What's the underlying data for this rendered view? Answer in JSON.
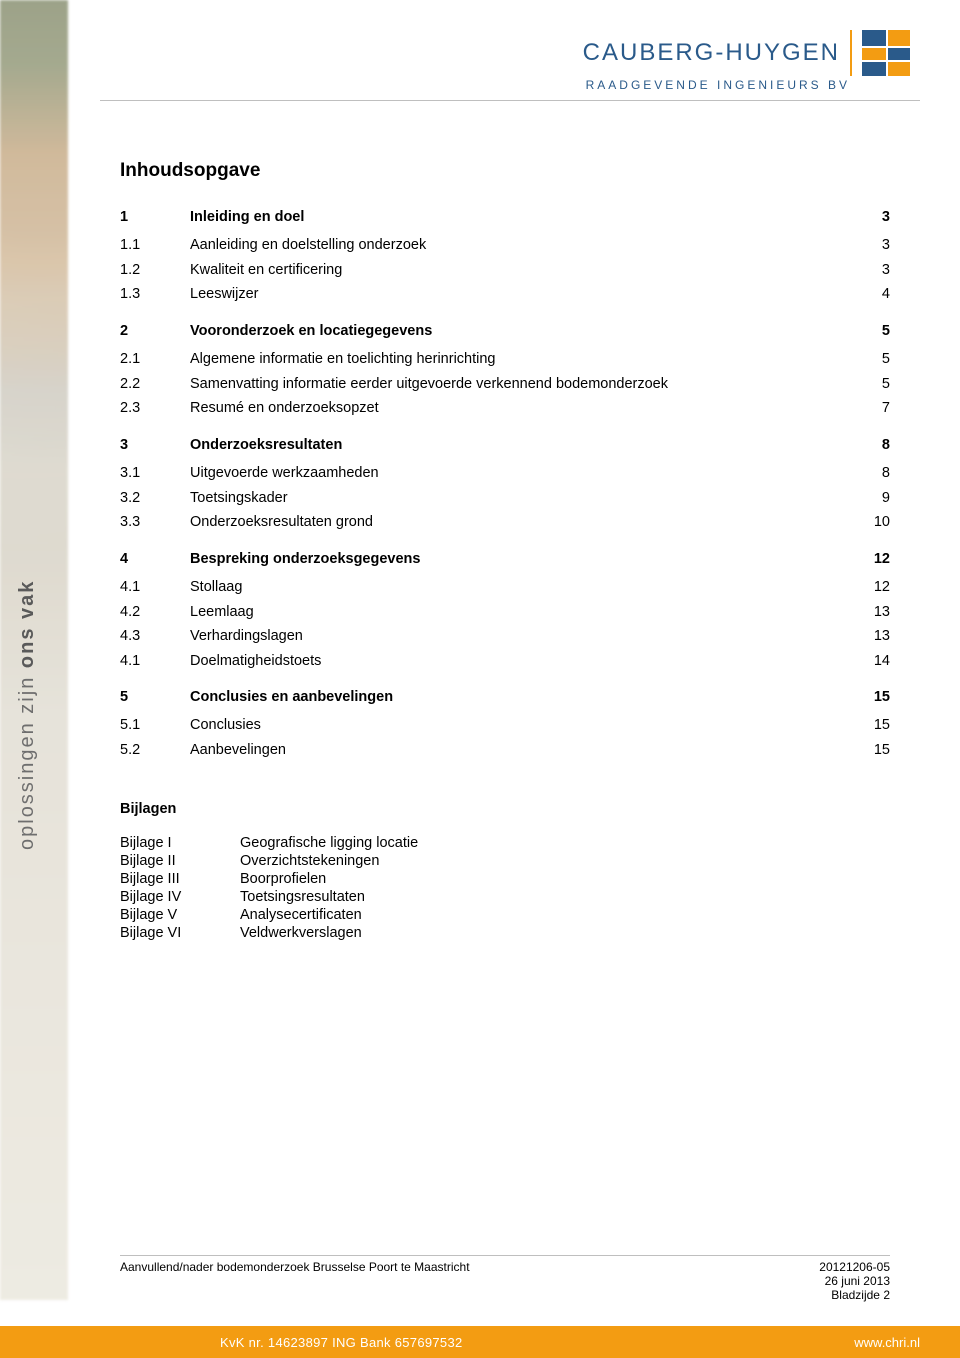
{
  "colors": {
    "brand_blue": "#2a5a8a",
    "brand_orange": "#f39c12",
    "rule_gray": "#bfbfbf",
    "side_text_gray": "#6e6e6e"
  },
  "header": {
    "company_name": "CAUBERG-HUYGEN",
    "subtitle": "RAADGEVENDE INGENIEURS BV"
  },
  "side_text": {
    "light": "oplossingen zijn",
    "bold": "ons vak"
  },
  "toc_title": "Inhoudsopgave",
  "toc": [
    {
      "num": "1",
      "label": "Inleiding en doel",
      "page": "3",
      "level": 1
    },
    {
      "num": "1.1",
      "label": "Aanleiding en doelstelling onderzoek",
      "page": "3",
      "level": 2
    },
    {
      "num": "1.2",
      "label": "Kwaliteit en certificering",
      "page": "3",
      "level": 2
    },
    {
      "num": "1.3",
      "label": "Leeswijzer",
      "page": "4",
      "level": 2
    },
    {
      "num": "2",
      "label": "Vooronderzoek en locatiegegevens",
      "page": "5",
      "level": 1
    },
    {
      "num": "2.1",
      "label": "Algemene informatie en toelichting herinrichting",
      "page": "5",
      "level": 2
    },
    {
      "num": "2.2",
      "label": "Samenvatting informatie eerder uitgevoerde verkennend bodemonderzoek",
      "page": "5",
      "level": 2
    },
    {
      "num": "2.3",
      "label": "Resumé en onderzoeksopzet",
      "page": "7",
      "level": 2
    },
    {
      "num": "3",
      "label": "Onderzoeksresultaten",
      "page": "8",
      "level": 1
    },
    {
      "num": "3.1",
      "label": "Uitgevoerde werkzaamheden",
      "page": "8",
      "level": 2
    },
    {
      "num": "3.2",
      "label": "Toetsingskader",
      "page": "9",
      "level": 2
    },
    {
      "num": "3.3",
      "label": "Onderzoeksresultaten grond",
      "page": "10",
      "level": 2
    },
    {
      "num": "4",
      "label": "Bespreking onderzoeksgegevens",
      "page": "12",
      "level": 1
    },
    {
      "num": "4.1",
      "label": "Stollaag",
      "page": "12",
      "level": 2
    },
    {
      "num": "4.2",
      "label": "Leemlaag",
      "page": "13",
      "level": 2
    },
    {
      "num": "4.3",
      "label": "Verhardingslagen",
      "page": "13",
      "level": 2
    },
    {
      "num": "4.1",
      "label": "Doelmatigheidstoets",
      "page": "14",
      "level": 2
    },
    {
      "num": "5",
      "label": "Conclusies en aanbevelingen",
      "page": "15",
      "level": 1
    },
    {
      "num": "5.1",
      "label": "Conclusies",
      "page": "15",
      "level": 2
    },
    {
      "num": "5.2",
      "label": "Aanbevelingen",
      "page": "15",
      "level": 2
    }
  ],
  "bijlagen_title": "Bijlagen",
  "bijlagen": [
    {
      "key": "Bijlage I",
      "value": "Geografische ligging locatie"
    },
    {
      "key": "Bijlage II",
      "value": "Overzichtstekeningen"
    },
    {
      "key": "Bijlage III",
      "value": "Boorprofielen"
    },
    {
      "key": "Bijlage IV",
      "value": "Toetsingsresultaten"
    },
    {
      "key": "Bijlage V",
      "value": "Analysecertificaten"
    },
    {
      "key": "Bijlage VI",
      "value": "Veldwerkverslagen"
    }
  ],
  "docinfo": {
    "left": "Aanvullend/nader bodemonderzoek Brusselse Poort te Maastricht",
    "ref": "20121206-05",
    "date": "26 juni 2013",
    "page": "Bladzijde 2"
  },
  "footer": {
    "kvk": "KvK nr. 14623897 ING Bank 657697532",
    "url": "www.chri.nl"
  }
}
